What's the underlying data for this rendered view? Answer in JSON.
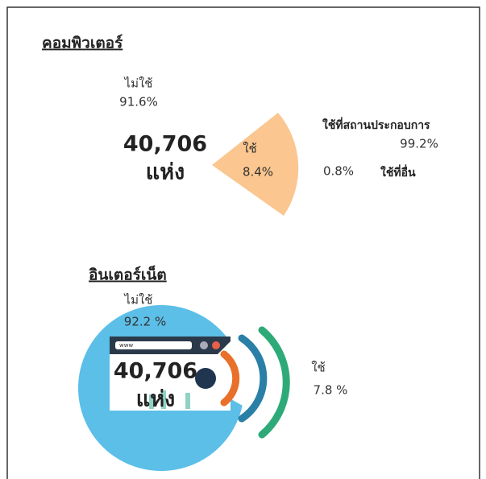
{
  "computer": {
    "title": "คอมพิวเตอร์",
    "not_used_label": "ไม่ใช้",
    "not_used_value": "91.6%",
    "total_number": "40,706",
    "total_unit": "แห่ง",
    "used_label": "ใช้",
    "used_value": "8.4%",
    "at_workplace_label": "ใช้ที่สถานประกอบการ",
    "at_workplace_value": "99.2%",
    "elsewhere_value": "0.8%",
    "elsewhere_label": "ใช้ที่อื่น"
  },
  "internet": {
    "title": "อินเตอร์เน็ต",
    "not_used_label": "ไม่ใช้",
    "not_used_value": "92.2 %",
    "total_number": "40,706",
    "total_unit": "แห่ง",
    "used_label": "ใช้",
    "used_value": "7.8 %",
    "browser_text": "www"
  }
}
